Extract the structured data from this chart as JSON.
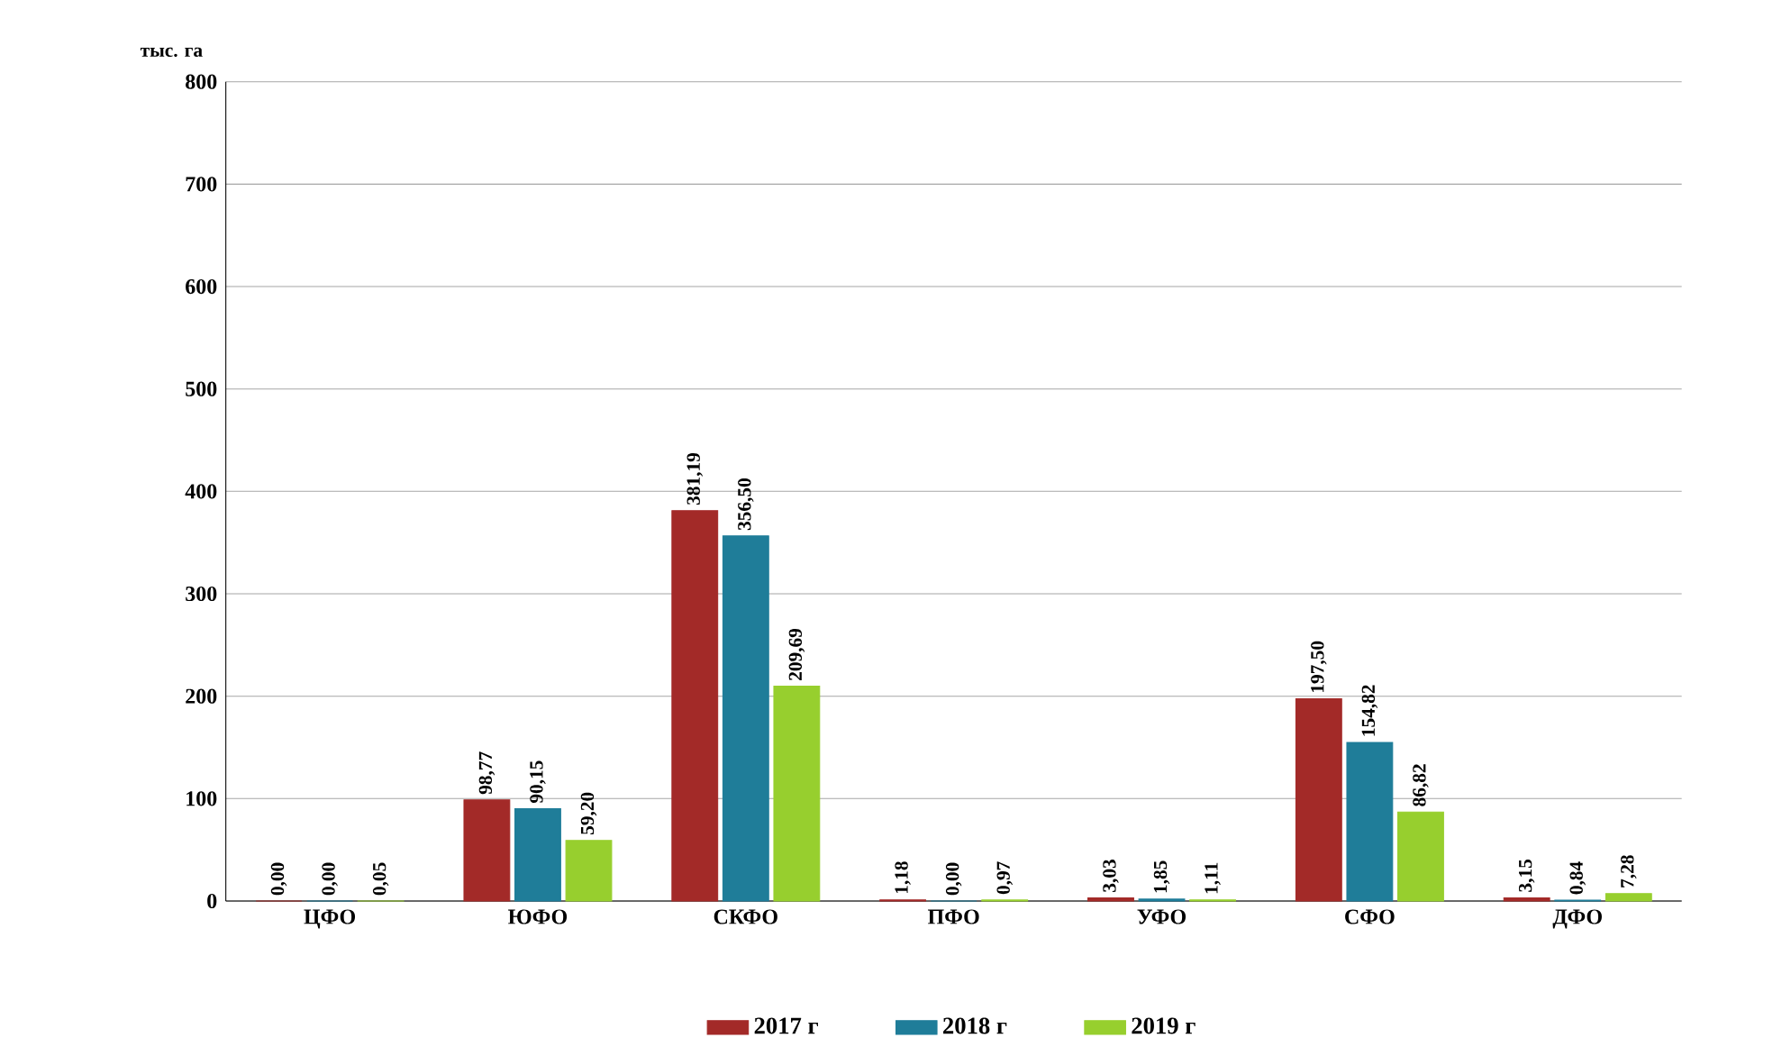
{
  "chart_data": {
    "type": "bar",
    "ylabel": "тыс. га",
    "categories": [
      "ЦФО",
      "ЮФО",
      "СКФО",
      "ПФО",
      "УФО",
      "СФО",
      "ДФО"
    ],
    "series": [
      {
        "name": "2017 г",
        "color": "#a32a28",
        "values": [
          0.0,
          98.77,
          381.19,
          1.18,
          3.03,
          197.5,
          3.15
        ],
        "value_labels": [
          "0,00",
          "98,77",
          "381,19",
          "1,18",
          "3,03",
          "197,50",
          "3,15"
        ]
      },
      {
        "name": "2018 г",
        "color": "#1f7d99",
        "values": [
          0.0,
          90.15,
          356.5,
          0.0,
          1.85,
          154.82,
          0.84
        ],
        "value_labels": [
          "0,00",
          "90,15",
          "356,50",
          "0,00",
          "1,85",
          "154,82",
          "0,84"
        ]
      },
      {
        "name": "2019 г",
        "color": "#97cf2e",
        "values": [
          0.05,
          59.2,
          209.69,
          0.97,
          1.11,
          86.82,
          7.28
        ],
        "value_labels": [
          "0,05",
          "59,20",
          "209,69",
          "0,97",
          "1,11",
          "86,82",
          "7,28"
        ]
      }
    ],
    "ylim": [
      0,
      800
    ],
    "yticks": [
      0,
      100,
      200,
      300,
      400,
      500,
      600,
      700,
      800
    ],
    "grid": "y",
    "legend": "bottom"
  }
}
